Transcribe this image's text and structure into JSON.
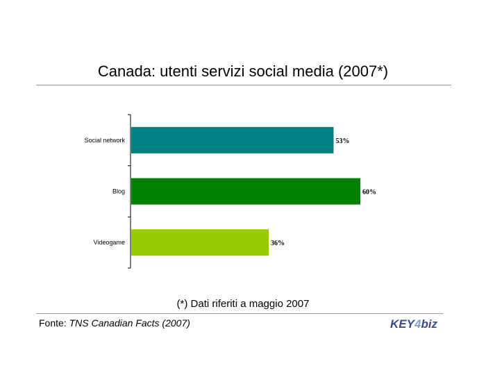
{
  "chart_data": {
    "type": "bar",
    "orientation": "horizontal",
    "title": "Canada: utenti servizi social media (2007*)",
    "categories": [
      "Social network",
      "Blog",
      "Videogame"
    ],
    "values": [
      53,
      60,
      36
    ],
    "data_labels": [
      "53%",
      "60%",
      "36%"
    ],
    "colors": [
      "#008080",
      "#008000",
      "#99cc00"
    ],
    "grid": false,
    "legend": "none"
  },
  "footnote": "(*) Dati riferiti a maggio 2007",
  "source": {
    "prefix": "Fonte: ",
    "text": "TNS Canadian Facts (2007)"
  },
  "logo": {
    "text_left": "KEY",
    "text_mid": "4",
    "text_right": "biz",
    "color": "#3a4a8a"
  }
}
